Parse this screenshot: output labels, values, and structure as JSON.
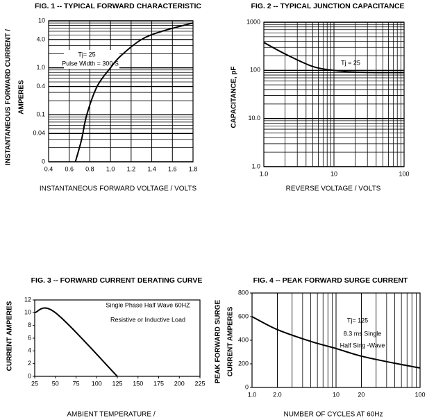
{
  "chart_data": [
    {
      "type": "line",
      "title": "FIG. 1 -- TYPICAL FORWARD CHARACTERISTIC",
      "xlabel": "INSTANTANEOUS FORWARD VOLTAGE / VOLTS",
      "ylabel": [
        "INSTANTANEOUS FORWARD CURRENT /",
        "AMPERES"
      ],
      "annotations": [
        "Tj= 25",
        "Pulse Width = 300  S"
      ],
      "x": [
        0.66,
        0.72,
        0.77,
        0.87,
        1.0,
        1.1,
        1.3,
        1.5,
        1.8
      ],
      "values": [
        0.01,
        0.03,
        0.1,
        0.4,
        1.0,
        1.8,
        4,
        6,
        9
      ],
      "color": "#000000",
      "xscale": "linear",
      "yscale": "log",
      "xlim": [
        0.4,
        1.8
      ],
      "ylim": [
        0.01,
        10
      ],
      "xticks": [
        0.4,
        0.6,
        0.8,
        {
          "value": 1,
          "label": "1.0"
        },
        1.2,
        1.4,
        1.6,
        1.8
      ],
      "yticks": [
        10,
        {
          "value": 4,
          "label": "4.0"
        },
        {
          "value": 1,
          "label": "1.0"
        },
        0.4,
        0.1,
        0.04,
        {
          "value": 0.01,
          "label": "0"
        }
      ],
      "xgrid": true,
      "ygrid": true,
      "minor_grid": true
    },
    {
      "type": "line",
      "title": "FIG. 2 -- TYPICAL JUNCTION CAPACITANCE",
      "xlabel": "REVERSE VOLTAGE / VOLTS",
      "ylabel": [
        "CAPACITANCE, pF"
      ],
      "annotations": [
        "Tj = 25"
      ],
      "x": [
        1,
        2,
        5,
        10,
        20,
        50,
        100
      ],
      "values": [
        380,
        220,
        120,
        100,
        92,
        90,
        90
      ],
      "color": "#000000",
      "xscale": "log",
      "yscale": "log",
      "xlim": [
        1,
        100
      ],
      "ylim": [
        1,
        1000
      ],
      "xticks": [
        {
          "value": 1,
          "label": "1.0"
        },
        10,
        100
      ],
      "yticks": [
        1000,
        100,
        {
          "value": 10,
          "label": "10.0"
        },
        {
          "value": 1,
          "label": "1.0"
        }
      ],
      "xgrid": true,
      "ygrid": true,
      "minor_grid": true
    },
    {
      "type": "line",
      "title": "FIG. 3 -- FORWARD CURRENT DERATING CURVE",
      "xlabel": "AMBIENT TEMPERATURE /",
      "ylabel": [
        "CURRENT AMPERES"
      ],
      "annotations": [
        "Single Phase Half Wave 60HZ",
        "Resistive or Inductive Load"
      ],
      "x": [
        25,
        50,
        125
      ],
      "values": [
        10,
        10,
        0
      ],
      "color": "#000000",
      "xscale": "linear",
      "yscale": "linear",
      "xlim": [
        25,
        225
      ],
      "ylim": [
        0,
        12
      ],
      "xticks": [
        25,
        50,
        75,
        100,
        125,
        150,
        175,
        200,
        225
      ],
      "yticks": [
        0,
        2,
        4,
        6,
        8,
        10,
        12
      ],
      "xgrid": false,
      "ygrid": false,
      "minor_grid": false
    },
    {
      "type": "line",
      "title": "FIG. 4 -- PEAK FORWARD SURGE CURRENT",
      "xlabel": "NUMBER OF CYCLES AT 60Hz",
      "ylabel": [
        "PEAK FORWARD SURGE",
        "CURRENT AMPERES"
      ],
      "annotations": [
        "Tj= 125",
        "8.3 ms Single",
        "Half Sing -Wave"
      ],
      "x": [
        1,
        2,
        5,
        10,
        20,
        50,
        100
      ],
      "values": [
        600,
        490,
        390,
        330,
        265,
        205,
        165
      ],
      "color": "#000000",
      "xscale": "log",
      "yscale": "linear",
      "xlim": [
        1,
        100
      ],
      "ylim": [
        0,
        800
      ],
      "xticks": [
        {
          "value": 1,
          "label": "1.0"
        },
        {
          "value": 2,
          "label": "2.0"
        },
        10,
        20,
        100
      ],
      "yticks": [
        0,
        200,
        400,
        600,
        800
      ],
      "xgrid": true,
      "ygrid": false,
      "minor_grid": true
    }
  ]
}
